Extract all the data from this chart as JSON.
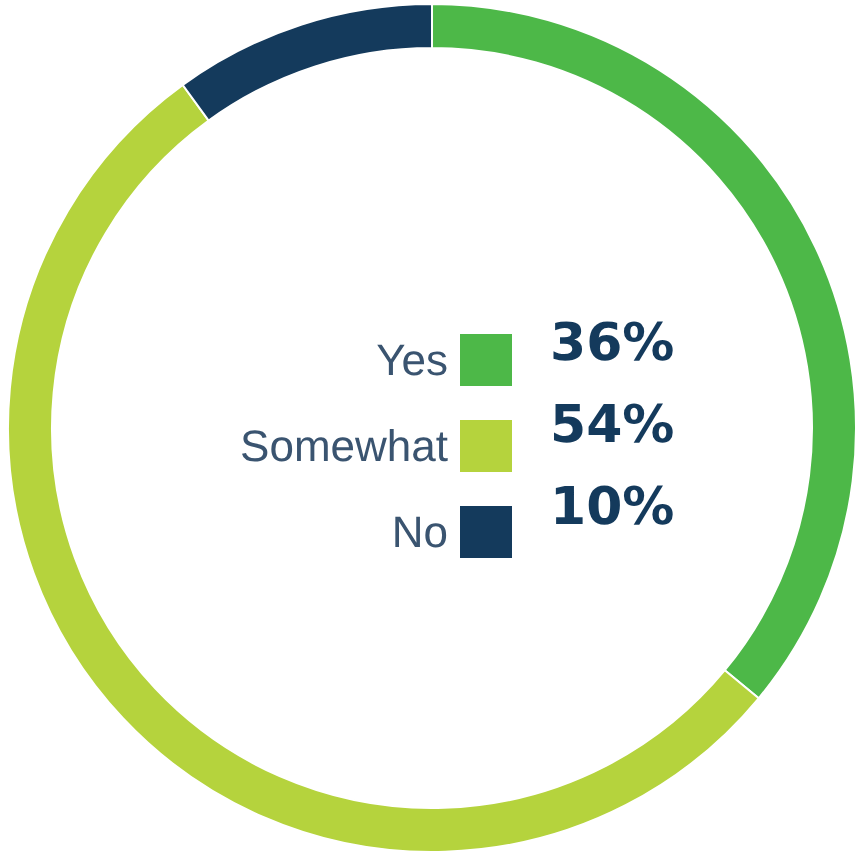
{
  "chart_data": {
    "type": "donut",
    "categories": [
      "Yes",
      "Somewhat",
      "No"
    ],
    "values": [
      36,
      54,
      10
    ],
    "colors": [
      "#4db848",
      "#b5d33d",
      "#143a5c"
    ],
    "value_labels": [
      "36%",
      "54%",
      "10%"
    ],
    "legend": "center"
  }
}
